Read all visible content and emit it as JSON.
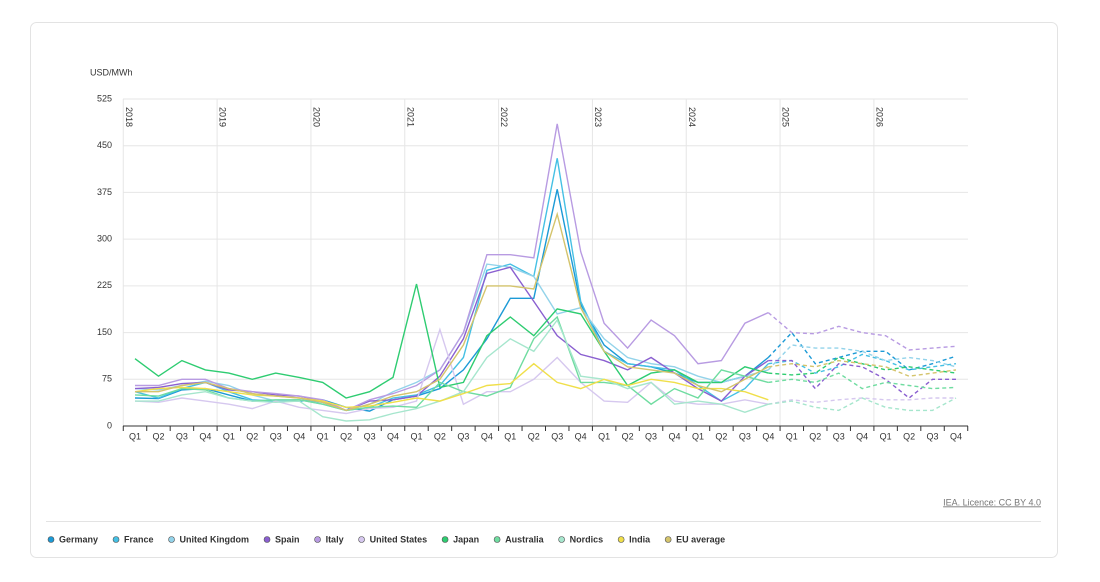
{
  "chart_data": {
    "type": "line",
    "y_label": "USD/MWh",
    "source": "IEA. Licence: CC BY 4.0",
    "categories": [
      "Q1",
      "Q2",
      "Q3",
      "Q4",
      "Q1",
      "Q2",
      "Q3",
      "Q4",
      "Q1",
      "Q2",
      "Q3",
      "Q4",
      "Q1",
      "Q2",
      "Q3",
      "Q4",
      "Q1",
      "Q2",
      "Q3",
      "Q4",
      "Q1",
      "Q2",
      "Q3",
      "Q4",
      "Q1",
      "Q2",
      "Q3",
      "Q4",
      "Q1",
      "Q2",
      "Q3",
      "Q4",
      "Q1",
      "Q2",
      "Q3",
      "Q4"
    ],
    "years": [
      "2018",
      "2019",
      "2020",
      "2021",
      "2022",
      "2023",
      "2024",
      "2025",
      "2026"
    ],
    "forecast_from": 27,
    "ylim": [
      0,
      525
    ],
    "yticks": [
      0,
      75,
      150,
      225,
      300,
      375,
      450,
      525
    ],
    "grid": true,
    "legend": "bottom",
    "series": [
      {
        "name": "Germany",
        "color": "#1c9ad6",
        "values": [
          45,
          44,
          58,
          60,
          50,
          40,
          40,
          40,
          42,
          30,
          24,
          42,
          48,
          60,
          90,
          140,
          205,
          205,
          380,
          195,
          130,
          100,
          95,
          85,
          70,
          70,
          80,
          110,
          150,
          100,
          110,
          120,
          120,
          90,
          100,
          112
        ]
      },
      {
        "name": "France",
        "color": "#45c0e4",
        "values": [
          55,
          45,
          60,
          70,
          55,
          42,
          40,
          42,
          38,
          25,
          30,
          45,
          50,
          65,
          110,
          250,
          260,
          240,
          430,
          200,
          120,
          100,
          95,
          90,
          65,
          40,
          60,
          100,
          105,
          85,
          95,
          115,
          105,
          90,
          95,
          100
        ]
      },
      {
        "name": "United Kingdom",
        "color": "#93d3ea",
        "values": [
          60,
          58,
          65,
          72,
          65,
          50,
          40,
          42,
          35,
          25,
          35,
          55,
          70,
          90,
          150,
          260,
          255,
          240,
          180,
          190,
          140,
          110,
          100,
          95,
          80,
          70,
          80,
          90,
          130,
          125,
          125,
          120,
          105,
          110,
          105,
          95
        ]
      },
      {
        "name": "Spain",
        "color": "#8a5fd0",
        "values": [
          60,
          62,
          68,
          70,
          58,
          55,
          50,
          48,
          40,
          25,
          40,
          42,
          48,
          80,
          140,
          245,
          255,
          200,
          145,
          115,
          105,
          90,
          110,
          85,
          60,
          40,
          80,
          105,
          105,
          60,
          100,
          95,
          75,
          45,
          75,
          75
        ]
      },
      {
        "name": "Italy",
        "color": "#b89be2",
        "values": [
          65,
          65,
          75,
          75,
          60,
          55,
          52,
          48,
          42,
          25,
          42,
          52,
          65,
          90,
          150,
          275,
          275,
          270,
          485,
          280,
          165,
          125,
          170,
          145,
          100,
          105,
          165,
          182,
          150,
          148,
          160,
          150,
          145,
          122,
          125,
          128
        ]
      },
      {
        "name": "United States",
        "color": "#d6c8ef",
        "values": [
          40,
          38,
          45,
          40,
          35,
          28,
          40,
          30,
          25,
          20,
          28,
          30,
          40,
          155,
          35,
          55,
          55,
          75,
          110,
          70,
          40,
          38,
          70,
          40,
          35,
          35,
          42,
          35,
          42,
          38,
          42,
          45,
          42,
          42,
          45,
          45
        ]
      },
      {
        "name": "Japan",
        "color": "#2ecc71",
        "values": [
          108,
          80,
          105,
          90,
          85,
          75,
          85,
          78,
          70,
          45,
          55,
          78,
          228,
          62,
          70,
          145,
          175,
          145,
          188,
          180,
          120,
          65,
          85,
          90,
          70,
          70,
          95,
          85,
          82,
          85,
          110,
          100,
          90,
          95,
          90,
          85
        ]
      },
      {
        "name": "Australia",
        "color": "#6fdca0",
        "values": [
          50,
          48,
          60,
          58,
          45,
          40,
          42,
          42,
          35,
          25,
          30,
          32,
          30,
          70,
          55,
          48,
          62,
          140,
          175,
          70,
          70,
          65,
          35,
          60,
          45,
          90,
          80,
          70,
          75,
          70,
          85,
          60,
          70,
          65,
          60,
          62
        ]
      },
      {
        "name": "Nordics",
        "color": "#a6e6cd",
        "values": [
          40,
          40,
          50,
          55,
          45,
          40,
          38,
          40,
          15,
          8,
          10,
          20,
          28,
          40,
          55,
          110,
          140,
          120,
          170,
          80,
          75,
          60,
          70,
          35,
          40,
          35,
          22,
          35,
          40,
          30,
          25,
          45,
          30,
          25,
          25,
          45
        ]
      },
      {
        "name": "India",
        "color": "#f0df4a",
        "values": [
          55,
          60,
          62,
          60,
          55,
          50,
          48,
          45,
          40,
          30,
          32,
          38,
          45,
          40,
          52,
          65,
          68,
          100,
          70,
          60,
          75,
          65,
          75,
          70,
          60,
          60,
          55,
          42,
          null,
          null,
          null,
          null,
          null,
          null,
          null,
          null
        ]
      },
      {
        "name": "EU average",
        "color": "#d4c46c",
        "values": [
          55,
          55,
          65,
          70,
          60,
          52,
          48,
          45,
          38,
          25,
          35,
          48,
          55,
          75,
          130,
          225,
          225,
          220,
          340,
          190,
          120,
          95,
          90,
          85,
          65,
          55,
          75,
          95,
          100,
          95,
          105,
          100,
          95,
          80,
          85,
          90
        ]
      }
    ]
  }
}
